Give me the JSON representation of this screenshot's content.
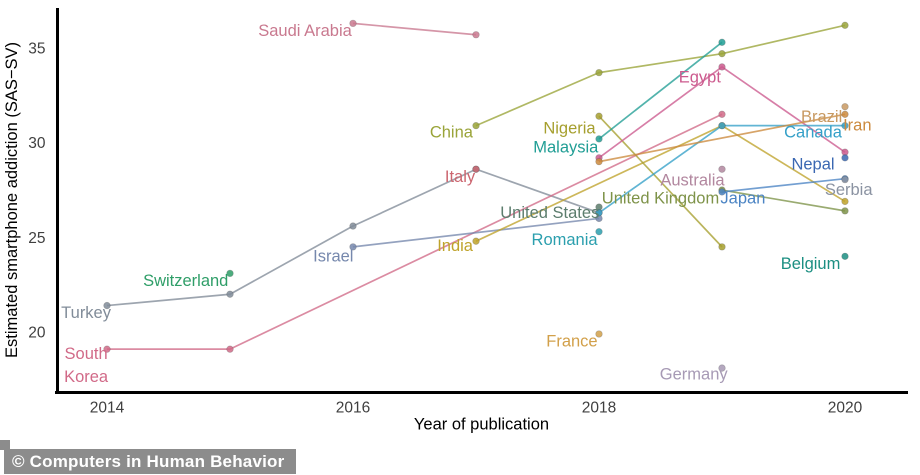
{
  "watermark": {
    "text": "© Computers in Human Behavior"
  },
  "chart_data": {
    "type": "line",
    "title": "",
    "xlabel": "Year of publication",
    "ylabel": "Estimated smartphone addiction (SAS−SV)",
    "x_ticks": [
      "2014",
      "2016",
      "2018",
      "2020"
    ],
    "x_tick_values": [
      2014,
      2016,
      2018,
      2020
    ],
    "y_ticks": [
      "20",
      "25",
      "30",
      "35"
    ],
    "y_tick_values": [
      20,
      25,
      30,
      35
    ],
    "xlim": [
      2013.6,
      2020.5
    ],
    "ylim": [
      16.8,
      37.1
    ],
    "grid": false,
    "legend_position": "labels-inline",
    "axis_color": "#000000",
    "tick_text_color": "#3f3f3f",
    "series": [
      {
        "name": "Turkey",
        "color": "#818c99",
        "points": [
          [
            2014,
            21.4
          ],
          [
            2015,
            22.0
          ],
          [
            2016,
            25.6
          ],
          [
            2017,
            28.6
          ],
          [
            2018,
            26.3
          ]
        ],
        "label": {
          "x": 2013.83,
          "y": 21.0,
          "lines": [
            "Turkey"
          ]
        }
      },
      {
        "name": "Switzerland",
        "color": "#2f9e68",
        "points": [
          [
            2015,
            23.1
          ]
        ],
        "label": {
          "x": 2014.64,
          "y": 22.7,
          "lines": [
            "Switzerland"
          ]
        }
      },
      {
        "name": "South Korea",
        "color": "#d16a88",
        "points": [
          [
            2014,
            19.1
          ],
          [
            2015,
            19.1
          ],
          [
            2019,
            31.5
          ]
        ],
        "label": {
          "x": 2013.83,
          "y": 18.85,
          "lines": [
            "South",
            "Korea"
          ]
        }
      },
      {
        "name": "Israel",
        "color": "#7688ad",
        "points": [
          [
            2016,
            24.5
          ],
          [
            2018,
            26.0
          ]
        ],
        "label": {
          "x": 2015.84,
          "y": 24.0,
          "lines": [
            "Israel"
          ]
        }
      },
      {
        "name": "Italy",
        "color": "#cc6670",
        "points": [
          [
            2017,
            28.6
          ]
        ],
        "label": {
          "x": 2016.87,
          "y": 28.2,
          "lines": [
            "Italy"
          ]
        }
      },
      {
        "name": "Saudi Arabia",
        "color": "#c9798f",
        "points": [
          [
            2016,
            36.3
          ],
          [
            2017,
            35.7
          ]
        ],
        "label": {
          "x": 2015.61,
          "y": 35.9,
          "lines": [
            "Saudi Arabia"
          ]
        }
      },
      {
        "name": "China",
        "color": "#9aa439",
        "points": [
          [
            2017,
            30.9
          ],
          [
            2018,
            33.7
          ],
          [
            2019,
            34.7
          ],
          [
            2020,
            36.2
          ]
        ],
        "label": {
          "x": 2016.8,
          "y": 30.55,
          "lines": [
            "China"
          ]
        }
      },
      {
        "name": "India",
        "color": "#bfa32b",
        "points": [
          [
            2017,
            24.8
          ],
          [
            2019,
            30.9
          ],
          [
            2020,
            26.9
          ]
        ],
        "label": {
          "x": 2016.83,
          "y": 24.55,
          "lines": [
            "India"
          ]
        }
      },
      {
        "name": "Nigeria",
        "color": "#a69f2e",
        "points": [
          [
            2018,
            31.4
          ],
          [
            2019,
            24.5
          ]
        ],
        "label": {
          "x": 2017.76,
          "y": 30.75,
          "lines": [
            "Nigeria"
          ]
        }
      },
      {
        "name": "Malaysia",
        "color": "#219e95",
        "points": [
          [
            2018,
            30.2
          ],
          [
            2019,
            35.3
          ]
        ],
        "label": {
          "x": 2017.73,
          "y": 29.75,
          "lines": [
            "Malaysia"
          ]
        }
      },
      {
        "name": "Egypt",
        "color": "#cc5a8e",
        "points": [
          [
            2018,
            29.2
          ],
          [
            2019,
            34.0
          ],
          [
            2020,
            29.5
          ]
        ],
        "label": {
          "x": 2018.82,
          "y": 33.45,
          "lines": [
            "Egypt"
          ]
        }
      },
      {
        "name": "United States",
        "color": "#5c7d6d",
        "points": [
          [
            2018,
            26.6
          ]
        ],
        "label": {
          "x": 2017.6,
          "y": 26.3,
          "lines": [
            "United States"
          ]
        }
      },
      {
        "name": "Romania",
        "color": "#2b9fae",
        "points": [
          [
            2018,
            25.3
          ]
        ],
        "label": {
          "x": 2017.72,
          "y": 24.85,
          "lines": [
            "Romania"
          ]
        }
      },
      {
        "name": "France",
        "color": "#d2a04a",
        "points": [
          [
            2018,
            19.9
          ]
        ],
        "label": {
          "x": 2017.78,
          "y": 19.5,
          "lines": [
            "France"
          ]
        }
      },
      {
        "name": "Germany",
        "color": "#a79ab5",
        "points": [
          [
            2019,
            18.1
          ]
        ],
        "label": {
          "x": 2018.77,
          "y": 17.75,
          "lines": [
            "Germany"
          ]
        }
      },
      {
        "name": "Australia",
        "color": "#b2879f",
        "points": [
          [
            2019,
            28.6
          ]
        ],
        "label": {
          "x": 2018.76,
          "y": 28.0,
          "lines": [
            "Australia"
          ]
        }
      },
      {
        "name": "United Kingdom",
        "color": "#7e9349",
        "points": [
          [
            2019,
            27.5
          ],
          [
            2020,
            26.4
          ]
        ],
        "label": {
          "x": 2018.5,
          "y": 27.05,
          "lines": [
            "United Kingdom"
          ]
        }
      },
      {
        "name": "Japan",
        "color": "#4b84c4",
        "points": [
          [
            2019,
            27.4
          ],
          [
            2020,
            28.1
          ]
        ],
        "label": {
          "x": 2019.17,
          "y": 27.05,
          "lines": [
            "Japan"
          ]
        }
      },
      {
        "name": "Canada",
        "color": "#35a0c8",
        "points": [
          [
            2018,
            26.3
          ],
          [
            2019,
            30.9
          ],
          [
            2020,
            30.9
          ]
        ],
        "label": {
          "x": 2019.74,
          "y": 30.55,
          "lines": [
            "Canada"
          ]
        }
      },
      {
        "name": "Nepal",
        "color": "#3b68b2",
        "points": [
          [
            2020,
            29.2
          ]
        ],
        "label": {
          "x": 2019.74,
          "y": 28.85,
          "lines": [
            "Nepal"
          ]
        }
      },
      {
        "name": "Serbia",
        "color": "#8b93a2",
        "points": [
          [
            2020,
            28.05
          ]
        ],
        "label": {
          "x": 2020.03,
          "y": 27.5,
          "lines": [
            "Serbia"
          ]
        }
      },
      {
        "name": "Brazil",
        "color": "#c89a62",
        "points": [
          [
            2020,
            31.9
          ]
        ],
        "label": {
          "x": 2019.81,
          "y": 31.35,
          "lines": [
            "Brazil"
          ]
        }
      },
      {
        "name": "Iran",
        "color": "#cc8a3e",
        "points": [
          [
            2018,
            29.0
          ],
          [
            2020,
            31.5
          ]
        ],
        "label": {
          "x": 2020.1,
          "y": 30.9,
          "lines": [
            "Iran"
          ]
        }
      },
      {
        "name": "Belgium",
        "color": "#1c8f82",
        "points": [
          [
            2020,
            24.0
          ]
        ],
        "label": {
          "x": 2019.72,
          "y": 23.6,
          "lines": [
            "Belgium"
          ]
        }
      }
    ]
  }
}
